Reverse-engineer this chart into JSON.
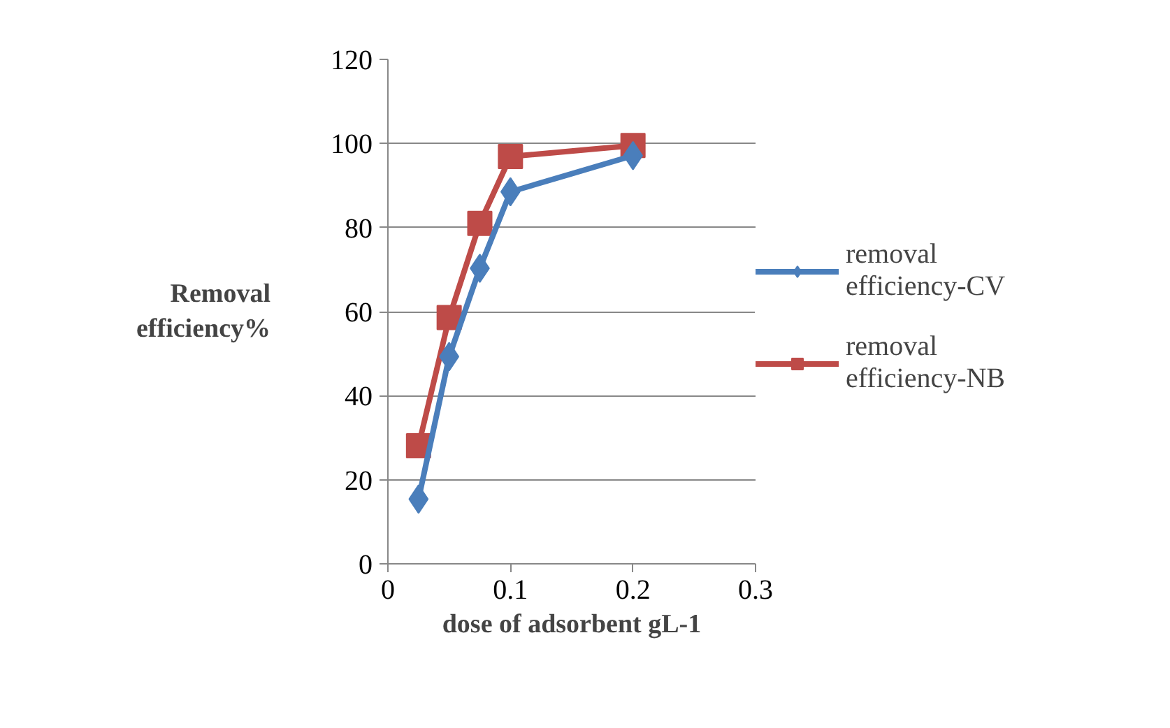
{
  "chart_data": {
    "type": "line",
    "xlabel": "dose of adsorbent gL-1",
    "ylabel": "Removal efficiency%",
    "x": [
      0.025,
      0.05,
      0.075,
      0.1,
      0.2
    ],
    "series": [
      {
        "name": "removal efficiency-CV",
        "color": "#4a7ebb",
        "values": [
          15.4,
          49.3,
          70.3,
          88.5,
          97.1
        ],
        "marker": "diamond"
      },
      {
        "name": "removal efficiency-NB",
        "color": "#be4b48",
        "values": [
          28.1,
          58.6,
          81,
          96.9,
          99.5
        ],
        "marker": "square"
      }
    ],
    "xlim": [
      0,
      0.3
    ],
    "xticks": [
      0,
      0.1,
      0.2,
      0.3
    ],
    "ylim": [
      0,
      120
    ],
    "yticks": [
      0,
      20,
      40,
      60,
      80,
      100,
      120
    ],
    "grid": "y",
    "legend": "right",
    "line_style": "solid"
  }
}
